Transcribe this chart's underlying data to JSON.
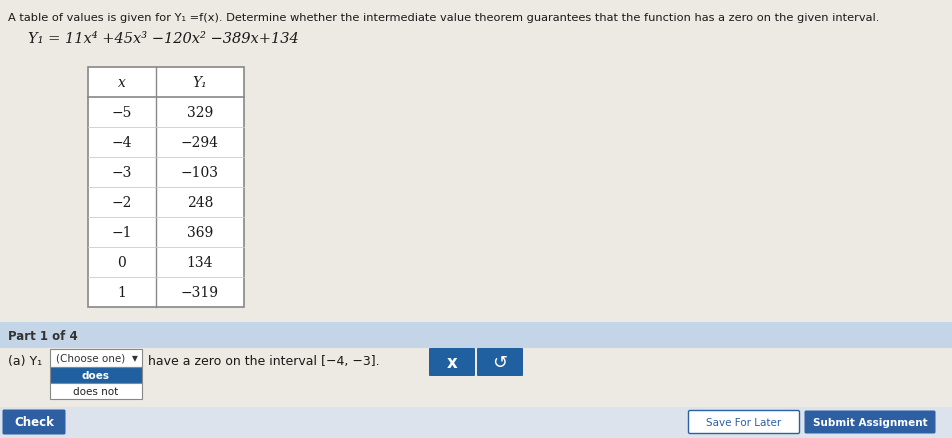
{
  "title_line1": "A table of values is given for Y₁ =f(x). Determine whether the intermediate value theorem guarantees that the function has a zero on the given interval.",
  "equation": "Y₁ = 11x⁴ +45x³ −120x² −389x+134",
  "table_headers": [
    "x",
    "Y₁"
  ],
  "table_data": [
    [
      "−5",
      "329"
    ],
    [
      "−4",
      "−294"
    ],
    [
      "−3",
      "−103"
    ],
    [
      "−2",
      "248"
    ],
    [
      "−1",
      "369"
    ],
    [
      "0",
      "134"
    ],
    [
      "1",
      "−319"
    ]
  ],
  "part_label": "Part 1 of 4",
  "part_bg_color": "#c5d5e8",
  "question_text_a": "(a) Y₁",
  "dropdown_label": "(Choose one)",
  "question_text_b": "have a zero on the interval [−4, −3].",
  "dropdown_options": [
    "does",
    "does not"
  ],
  "dropdown_selected": "does",
  "dropdown_selected_bg": "#2060a0",
  "x_button_color": "#2060a0",
  "x_button_text": "x",
  "undo_button_color": "#2060a0",
  "undo_button_text": "↺",
  "check_button_label": "Check",
  "check_button_bg": "#2e5fa3",
  "save_button_label": "Save For Later",
  "submit_button_label": "Submit Assignment",
  "bg_color": "#ede9e3",
  "table_bg": "#ffffff",
  "text_color": "#1a1a1a",
  "font_size_title": 8.2,
  "font_size_eq": 10.5,
  "font_size_table": 10,
  "font_size_part": 8.5,
  "font_size_question": 9.0
}
